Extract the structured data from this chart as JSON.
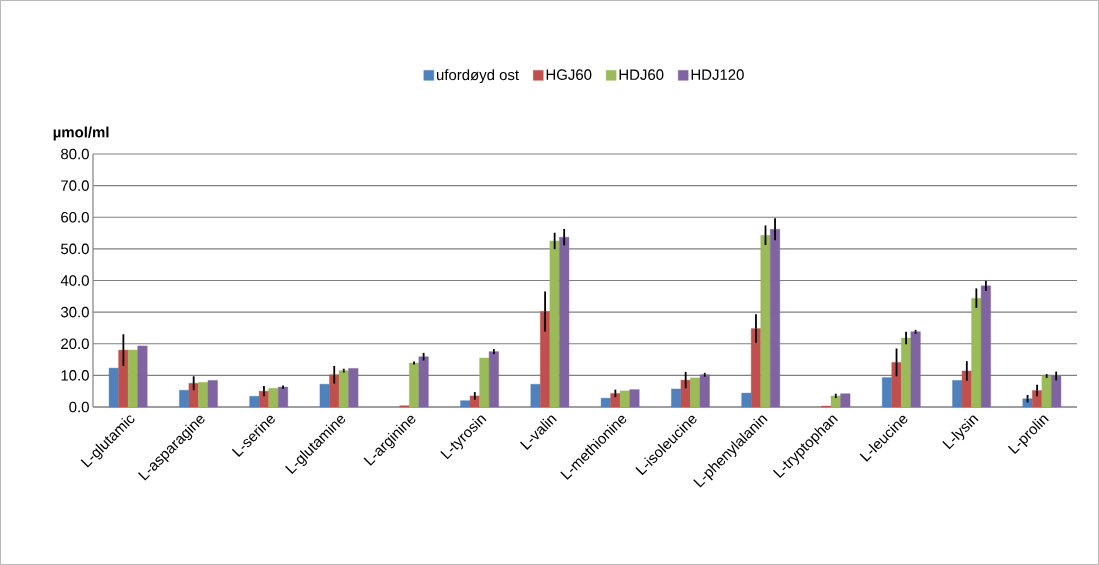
{
  "chart_data": {
    "type": "bar",
    "ylabel": "µmol/ml",
    "categories": [
      "L-glutamic",
      "L-asparagine",
      "L-serine",
      "L-glutamine",
      "L-arginine",
      "L-tyrosin",
      "L-valin",
      "L-methionine",
      "L-isoleucine",
      "L-phenylalanin",
      "L-tryptophan",
      "L-leucine",
      "L-lysin",
      "L-prolin"
    ],
    "series": [
      {
        "name": "ufordøyd ost",
        "color": "#4f81bd",
        "values": [
          12.3,
          5.3,
          3.4,
          7.2,
          null,
          2.0,
          7.2,
          2.8,
          5.7,
          4.4,
          null,
          9.3,
          8.4,
          2.6
        ],
        "errors": [
          null,
          null,
          null,
          null,
          null,
          null,
          null,
          null,
          null,
          null,
          null,
          null,
          null,
          1.2
        ]
      },
      {
        "name": "HGJ60",
        "color": "#c0504d",
        "values": [
          18.0,
          7.5,
          5.0,
          10.2,
          0.4,
          3.5,
          30.2,
          4.3,
          8.5,
          24.8,
          0.3,
          14.1,
          11.4,
          5.2
        ],
        "errors": [
          5.0,
          2.2,
          1.6,
          2.8,
          null,
          1.2,
          6.3,
          1.2,
          2.6,
          4.5,
          null,
          4.4,
          3.1,
          1.8
        ]
      },
      {
        "name": "HDJ60",
        "color": "#9bbb59",
        "values": [
          18.0,
          7.8,
          5.9,
          11.5,
          13.9,
          15.5,
          52.5,
          5.1,
          9.2,
          54.3,
          3.5,
          21.8,
          34.4,
          9.8
        ],
        "errors": [
          null,
          null,
          null,
          0.6,
          0.5,
          null,
          2.6,
          null,
          null,
          3.1,
          0.7,
          2.0,
          3.1,
          0.6
        ]
      },
      {
        "name": "HDJ120",
        "color": "#8064a2",
        "values": [
          19.3,
          8.4,
          6.3,
          12.2,
          15.9,
          17.5,
          53.7,
          5.5,
          10.2,
          56.2,
          4.2,
          23.8,
          38.3,
          9.8
        ],
        "errors": [
          null,
          null,
          0.5,
          null,
          1.2,
          0.8,
          2.6,
          null,
          0.6,
          3.5,
          null,
          0.6,
          1.6,
          1.4
        ]
      }
    ],
    "ylim": [
      0,
      80
    ],
    "yticks": [
      {
        "value": 0,
        "label": "0.0"
      },
      {
        "value": 10,
        "label": "10.0"
      },
      {
        "value": 20,
        "label": "20.0"
      },
      {
        "value": 30,
        "label": "30.0"
      },
      {
        "value": 40,
        "label": "40.0"
      },
      {
        "value": 50,
        "label": "50.0"
      },
      {
        "value": 60,
        "label": "60.0"
      },
      {
        "value": 70,
        "label": "70.0"
      },
      {
        "value": 80,
        "label": "80.0"
      }
    ],
    "grid": "y",
    "legend": "top"
  }
}
